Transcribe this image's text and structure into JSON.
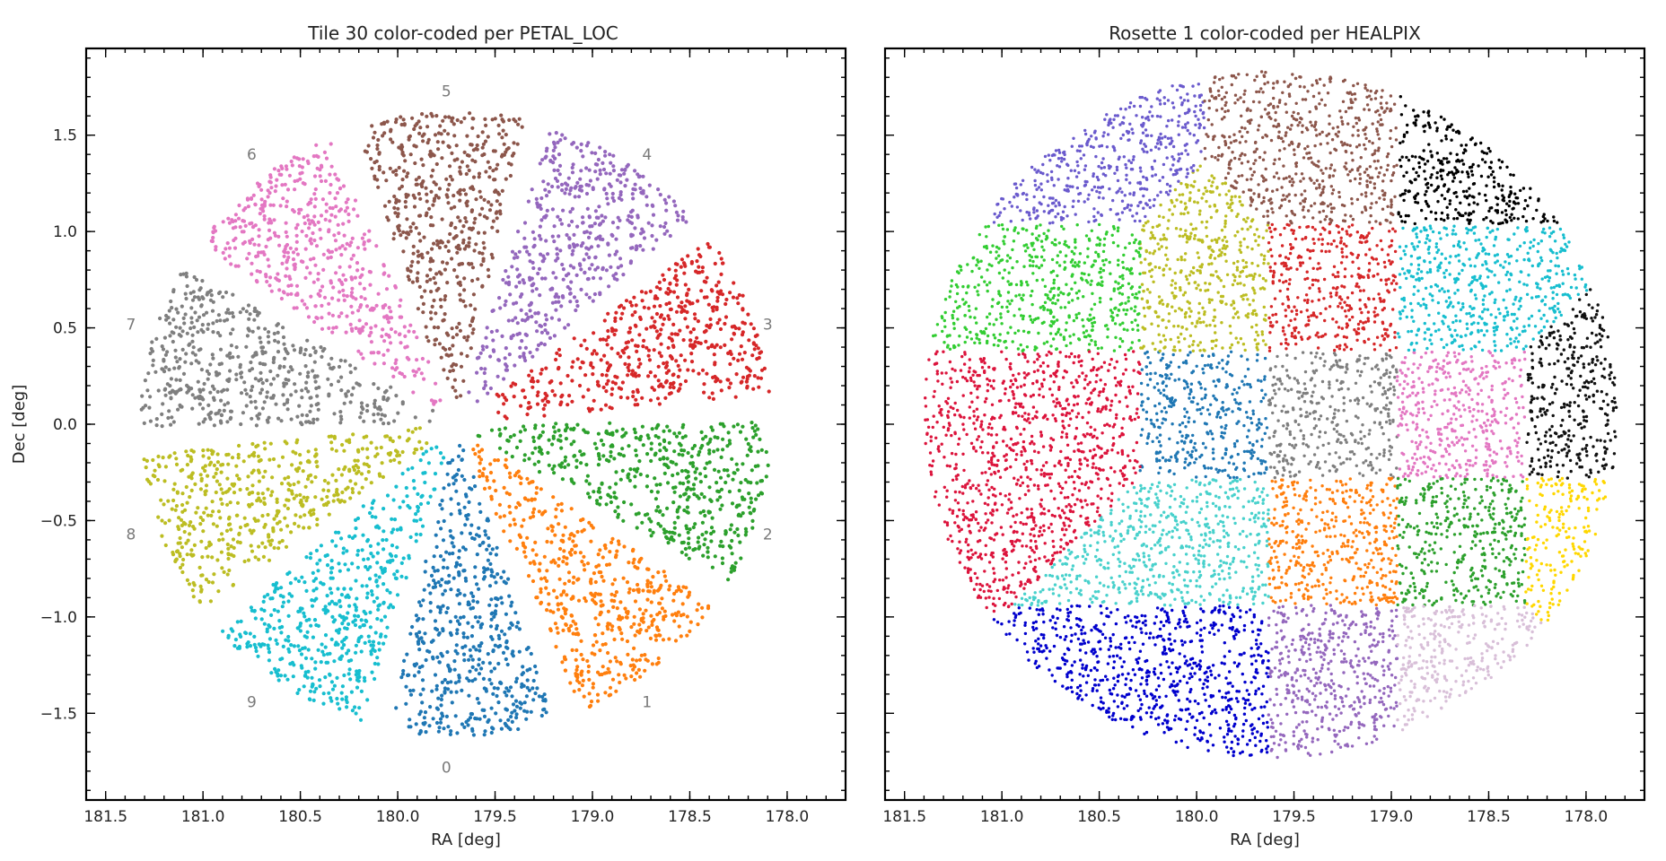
{
  "chart_data": [
    {
      "type": "scatter",
      "title": "Tile 30 color-coded per PETAL_LOC",
      "xlabel": "RA [deg]",
      "ylabel": "Dec [deg]",
      "xlim": [
        181.6,
        177.7
      ],
      "ylim": [
        -1.95,
        1.95
      ],
      "x_ticks": [
        "181.5",
        "181.0",
        "180.5",
        "180.0",
        "179.5",
        "179.0",
        "178.5",
        "178.0"
      ],
      "y_ticks": [
        "1.5",
        "1.0",
        "0.5",
        "0.0",
        "−0.5",
        "−1.0",
        "−1.5"
      ],
      "center": [
        179.7,
        0.0
      ],
      "radius_deg": 1.62,
      "series": [
        {
          "name": "0",
          "color": "#1f77b4",
          "angle_from": 255,
          "angle_to": 291
        },
        {
          "name": "1",
          "color": "#ff7f0e",
          "angle_from": 291,
          "angle_to": 327
        },
        {
          "name": "2",
          "color": "#2ca02c",
          "angle_from": 327,
          "angle_to": 363
        },
        {
          "name": "3",
          "color": "#d62728",
          "angle_from": 3,
          "angle_to": 39
        },
        {
          "name": "4",
          "color": "#9467bd",
          "angle_from": 39,
          "angle_to": 75
        },
        {
          "name": "5",
          "color": "#8c564b",
          "angle_from": 75,
          "angle_to": 111
        },
        {
          "name": "6",
          "color": "#e377c2",
          "angle_from": 111,
          "angle_to": 147
        },
        {
          "name": "7",
          "color": "#7f7f7f",
          "angle_from": 147,
          "angle_to": 183
        },
        {
          "name": "8",
          "color": "#bcbd22",
          "angle_from": 183,
          "angle_to": 219
        },
        {
          "name": "9",
          "color": "#17becf",
          "angle_from": 219,
          "angle_to": 255
        }
      ],
      "annotations": [
        {
          "text": "0",
          "x": 179.75,
          "y": -1.78
        },
        {
          "text": "1",
          "x": 178.72,
          "y": -1.44
        },
        {
          "text": "2",
          "x": 178.1,
          "y": -0.57
        },
        {
          "text": "3",
          "x": 178.1,
          "y": 0.52
        },
        {
          "text": "4",
          "x": 178.72,
          "y": 1.4
        },
        {
          "text": "5",
          "x": 179.75,
          "y": 1.73
        },
        {
          "text": "6",
          "x": 180.75,
          "y": 1.4
        },
        {
          "text": "7",
          "x": 181.37,
          "y": 0.52
        },
        {
          "text": "8",
          "x": 181.37,
          "y": -0.57
        },
        {
          "text": "9",
          "x": 180.75,
          "y": -1.44
        }
      ]
    },
    {
      "type": "scatter",
      "title": "Rosette 1 color-coded per HEALPIX",
      "xlabel": "RA [deg]",
      "ylabel": "",
      "xlim": [
        181.6,
        177.7
      ],
      "ylim": [
        -1.95,
        1.95
      ],
      "x_ticks": [
        "181.5",
        "181.0",
        "180.5",
        "180.0",
        "179.5",
        "179.0",
        "178.5",
        "178.0"
      ],
      "y_ticks": [],
      "center": [
        179.62,
        0.05
      ],
      "radius_deg": 1.78,
      "grid_origin": [
        179.3,
        0.05
      ],
      "grid_half_diagonal": 0.66,
      "series": [
        {
          "name": "",
          "color": "#7f7f7f",
          "cell": [
            0,
            0
          ]
        },
        {
          "name": "",
          "color": "#1f77b4",
          "cell": [
            -1,
            0
          ]
        },
        {
          "name": "",
          "color": "#ff7f0e",
          "cell": [
            0,
            -1
          ]
        },
        {
          "name": "",
          "color": "#d62728",
          "cell": [
            0,
            1
          ]
        },
        {
          "name": "",
          "color": "#e377c2",
          "cell": [
            1,
            0
          ]
        },
        {
          "name": "",
          "color": "#bcbd22",
          "cell": [
            -1,
            1
          ]
        },
        {
          "name": "",
          "color": "#2ca02c",
          "cell": [
            1,
            -1
          ]
        },
        {
          "name": "",
          "color": "#48d1cc",
          "cell": [
            -1,
            -1
          ]
        },
        {
          "name": "",
          "color": "#32cd32",
          "cell": [
            -2,
            1
          ]
        },
        {
          "name": "",
          "color": "#9467bd",
          "cell": [
            0,
            -2
          ]
        },
        {
          "name": "",
          "color": "#17becf",
          "cell": [
            1,
            1
          ]
        },
        {
          "name": "",
          "color": "#6a5acd",
          "cell": [
            -2,
            2
          ]
        },
        {
          "name": "",
          "color": "#dc143c",
          "cell": [
            -2,
            0
          ]
        },
        {
          "name": "",
          "color": "#0000cd",
          "cell": [
            -1,
            -2
          ]
        },
        {
          "name": "",
          "color": "#d8bfd8",
          "cell": [
            1,
            -2
          ]
        },
        {
          "name": "",
          "color": "#ffd700",
          "cell": [
            2,
            -1
          ]
        },
        {
          "name": "",
          "color": "#000000",
          "cell": [
            1,
            2
          ]
        },
        {
          "name": "",
          "color": "#8c564b",
          "cell": [
            0,
            2
          ]
        },
        {
          "name": "",
          "color": "#111111",
          "cell": [
            2,
            0
          ]
        }
      ]
    }
  ]
}
